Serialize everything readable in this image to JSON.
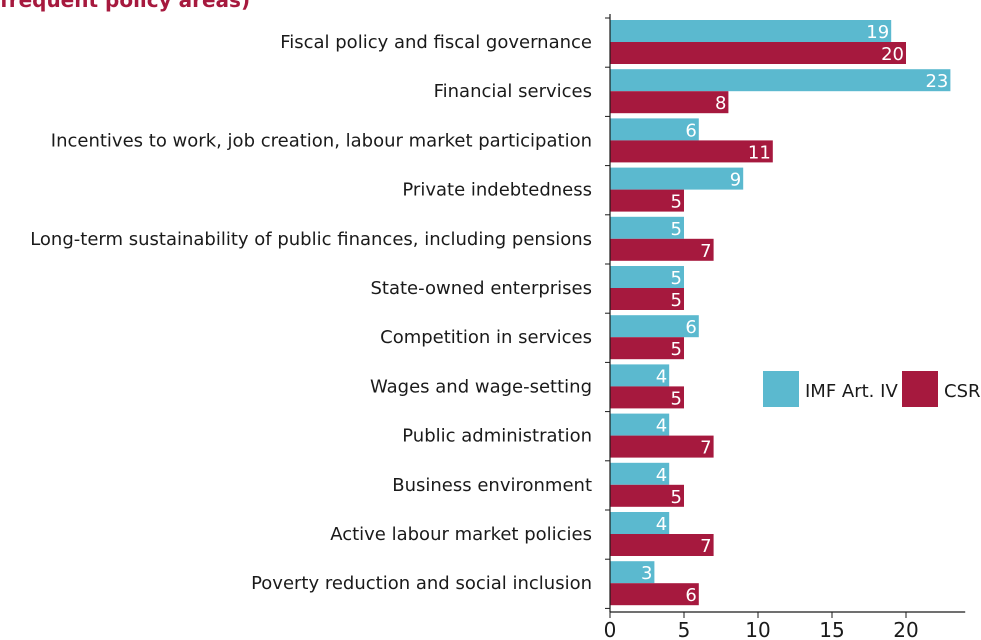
{
  "chart_data": {
    "type": "bar",
    "orientation": "horizontal",
    "title": "frequent policy areas)",
    "categories": [
      "Fiscal policy and fiscal governance",
      "Financial services",
      "Incentives to work, job creation, labour market participation",
      "Private indebtedness",
      "Long-term sustainability of public finances, including pensions",
      "State-owned enterprises",
      "Competition in services",
      "Wages and wage-setting",
      "Public administration",
      "Business environment",
      "Active labour market policies",
      "Poverty reduction and social inclusion"
    ],
    "series": [
      {
        "name": "IMF Art. IV",
        "color": "#5bb9cf",
        "values": [
          19,
          23,
          6,
          9,
          5,
          5,
          6,
          4,
          4,
          4,
          4,
          3
        ]
      },
      {
        "name": "CSR",
        "color": "#a6193e",
        "values": [
          20,
          8,
          11,
          5,
          7,
          5,
          5,
          5,
          7,
          5,
          7,
          6
        ]
      }
    ],
    "xlim": [
      0,
      24
    ],
    "xticks": [
      0,
      5,
      10,
      15,
      20
    ],
    "legend_position": "right",
    "grid": false
  }
}
